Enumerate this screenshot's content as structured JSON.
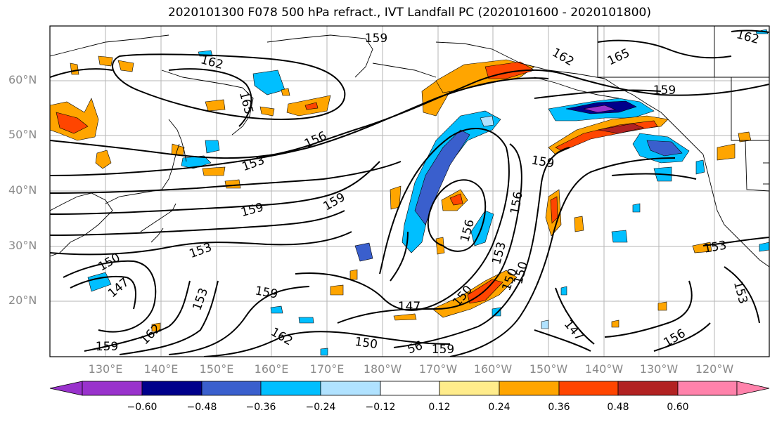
{
  "title": "2020101300 F078 500 hPa refract., IVT Landfall PC (2020101600 - 2020101800)",
  "lat_labels": [
    "60°N",
    "50°N",
    "40°N",
    "30°N",
    "20°N"
  ],
  "lon_labels": [
    "130°E",
    "140°E",
    "150°E",
    "160°E",
    "170°E",
    "180°W",
    "170°W",
    "160°W",
    "150°W",
    "140°W",
    "130°W",
    "120°W"
  ],
  "contour_labels": [
    {
      "text": "162"
    },
    {
      "text": "165"
    },
    {
      "text": "159"
    },
    {
      "text": "162"
    },
    {
      "text": "165"
    },
    {
      "text": "162"
    },
    {
      "text": "159"
    },
    {
      "text": "156"
    },
    {
      "text": "153"
    },
    {
      "text": "159"
    },
    {
      "text": "159"
    },
    {
      "text": "159"
    },
    {
      "text": "156"
    },
    {
      "text": "156"
    },
    {
      "text": "153"
    },
    {
      "text": "150"
    },
    {
      "text": "147"
    },
    {
      "text": "153"
    },
    {
      "text": "150"
    },
    {
      "text": "147"
    },
    {
      "text": "150"
    },
    {
      "text": "153"
    },
    {
      "text": "153"
    },
    {
      "text": "153"
    },
    {
      "text": "156"
    },
    {
      "text": "147"
    },
    {
      "text": "159"
    },
    {
      "text": "162"
    },
    {
      "text": "162"
    },
    {
      "text": "159"
    },
    {
      "text": "150"
    },
    {
      "text": "56"
    },
    {
      "text": "159"
    },
    {
      "text": "150"
    }
  ],
  "colorbar": {
    "colors": [
      "#9932cc",
      "#00008b",
      "#3a5fcd",
      "#00bfff",
      "#b0e2ff",
      "#ffffff",
      "#ffec8b",
      "#ffa500",
      "#ff4500",
      "#b22222",
      "#ff82ab"
    ],
    "ticks": [
      "−0.60",
      "−0.48",
      "−0.36",
      "−0.24",
      "−0.12",
      "0.12",
      "0.24",
      "0.36",
      "0.48",
      "0.60"
    ]
  }
}
